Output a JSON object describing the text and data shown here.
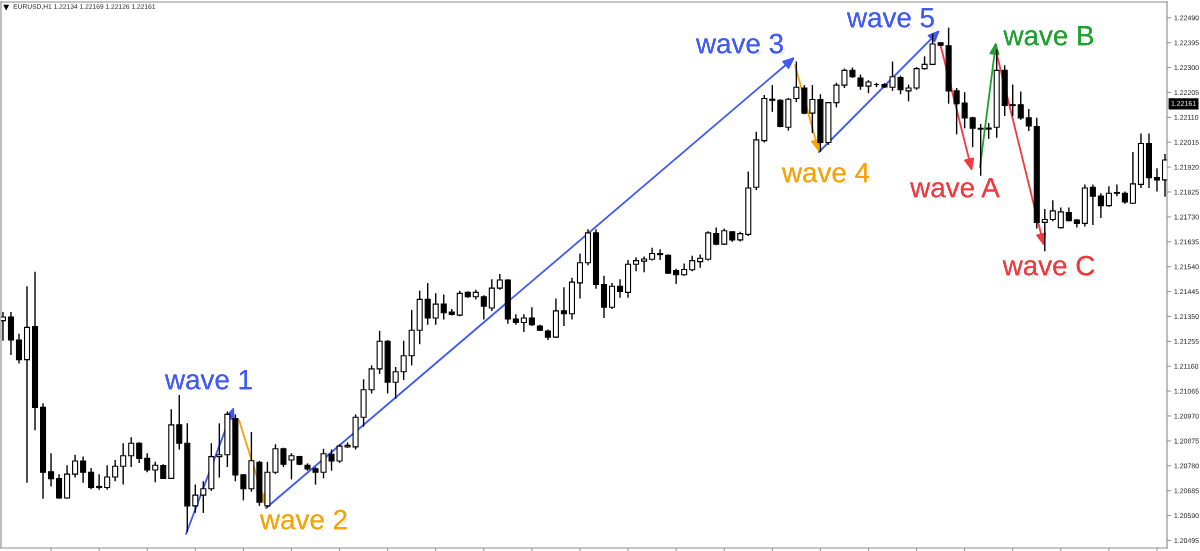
{
  "chart_data": {
    "type": "candlestick",
    "title": "EURUSD,H1 1.22134 1.22169 1.22126 1.22161",
    "tick_labels": "y",
    "categories": [
      null,
      null,
      null,
      null,
      null,
      null,
      null,
      null,
      null,
      null,
      null,
      null,
      null,
      null,
      null,
      null,
      null,
      null,
      null,
      null,
      null,
      null,
      null,
      null,
      null,
      null,
      null,
      null,
      null,
      null,
      null,
      null,
      null,
      null,
      null,
      null,
      null,
      null,
      null,
      null,
      null,
      null,
      null,
      null,
      null,
      null,
      null,
      null,
      null,
      null,
      null,
      null,
      null,
      null,
      null,
      null,
      null,
      null,
      null,
      null,
      null,
      null,
      null,
      null,
      null,
      null,
      null,
      null,
      null,
      null,
      null,
      null,
      null,
      null,
      null,
      null,
      null,
      null,
      null,
      null,
      null,
      null,
      null,
      null,
      null,
      null,
      null,
      null,
      null,
      null,
      null,
      null,
      null,
      null,
      null,
      null,
      null,
      null,
      null,
      null,
      null,
      null,
      null,
      null,
      null,
      null,
      null,
      null,
      null,
      null,
      null,
      null,
      null,
      null,
      null,
      null,
      null,
      null,
      null,
      null,
      null,
      null,
      null,
      null,
      null,
      null,
      null,
      null,
      null,
      null,
      null,
      null,
      null,
      null,
      null,
      null,
      null,
      null,
      null,
      null,
      null,
      null,
      null,
      null,
      null,
      null
    ],
    "ohlc": [
      [
        1.21334,
        1.21367,
        1.21257,
        1.21348
      ],
      [
        1.21348,
        1.21367,
        1.21203,
        1.2126
      ],
      [
        1.2126,
        1.21284,
        1.2117,
        1.21185
      ],
      [
        1.21185,
        1.21465,
        1.20715,
        1.21308
      ],
      [
        1.21311,
        1.21521,
        1.20916,
        1.21003
      ],
      [
        1.21003,
        1.21019,
        1.20654,
        1.20755
      ],
      [
        1.20757,
        1.20828,
        1.20701,
        1.20731
      ],
      [
        1.20731,
        1.20748,
        1.20654,
        1.20657
      ],
      [
        1.20657,
        1.20782,
        1.20654,
        1.20748
      ],
      [
        1.20748,
        1.20822,
        1.20735,
        1.20798
      ],
      [
        1.20798,
        1.20815,
        1.20715,
        1.20755
      ],
      [
        1.20755,
        1.20771,
        1.2069,
        1.20697
      ],
      [
        1.20701,
        1.20748,
        1.20688,
        1.20697
      ],
      [
        1.20697,
        1.20782,
        1.20688,
        1.20737
      ],
      [
        1.20737,
        1.20802,
        1.20721,
        1.20778
      ],
      [
        1.20778,
        1.20866,
        1.20708,
        1.20818
      ],
      [
        1.20818,
        1.20889,
        1.20775,
        1.20866
      ],
      [
        1.20866,
        1.2087,
        1.20791,
        1.20808
      ],
      [
        1.20808,
        1.20828,
        1.20755,
        1.20764
      ],
      [
        1.20764,
        1.20795,
        1.20717,
        1.20782
      ],
      [
        1.20781,
        1.20786,
        1.20732,
        1.20732
      ],
      [
        1.20732,
        1.20996,
        1.20729,
        1.20936
      ],
      [
        1.20936,
        1.2105,
        1.20842,
        1.20866
      ],
      [
        1.20866,
        1.20942,
        1.20527,
        1.20627
      ],
      [
        1.20627,
        1.20708,
        1.20601,
        1.20668
      ],
      [
        1.20668,
        1.20721,
        1.206,
        1.20692
      ],
      [
        1.20692,
        1.20866,
        1.20684,
        1.20815
      ],
      [
        1.20815,
        1.20942,
        1.20735,
        1.20822
      ],
      [
        1.20822,
        1.20987,
        1.20775,
        1.20976
      ],
      [
        1.2096,
        1.20976,
        1.20721,
        1.20745
      ],
      [
        1.20745,
        1.20748,
        1.20648,
        1.20692
      ],
      [
        1.20692,
        1.20909,
        1.20681,
        1.20799
      ],
      [
        1.20793,
        1.20799,
        1.20627,
        1.20641
      ],
      [
        1.20627,
        1.20795,
        1.2062,
        1.20755
      ],
      [
        1.20755,
        1.20862,
        1.20748,
        1.20845
      ],
      [
        1.20845,
        1.20849,
        1.20775,
        1.20786
      ],
      [
        1.20802,
        1.20828,
        1.20728,
        1.20818
      ],
      [
        1.20815,
        1.20818,
        1.20782,
        1.20786
      ],
      [
        1.20782,
        1.20789,
        1.20761,
        1.20768
      ],
      [
        1.20768,
        1.20775,
        1.20708,
        1.20755
      ],
      [
        1.20755,
        1.20845,
        1.20732,
        1.20826
      ],
      [
        1.20824,
        1.20842,
        1.20761,
        1.20798
      ],
      [
        1.20798,
        1.20862,
        1.20791,
        1.20855
      ],
      [
        1.20852,
        1.20869,
        1.20849,
        1.20858
      ],
      [
        1.20852,
        1.20976,
        1.20842,
        1.20965
      ],
      [
        1.20965,
        1.2111,
        1.20929,
        1.2107
      ],
      [
        1.2107,
        1.21163,
        1.21056,
        1.2115
      ],
      [
        1.2115,
        1.21295,
        1.2113,
        1.21255
      ],
      [
        1.21255,
        1.2126,
        1.21056,
        1.21099
      ],
      [
        1.21099,
        1.21157,
        1.21036,
        1.21139
      ],
      [
        1.21139,
        1.21257,
        1.21107,
        1.212
      ],
      [
        1.212,
        1.21375,
        1.21163,
        1.21297
      ],
      [
        1.21297,
        1.21448,
        1.21244,
        1.21415
      ],
      [
        1.21415,
        1.21478,
        1.21318,
        1.21344
      ],
      [
        1.21344,
        1.21438,
        1.21318,
        1.21397
      ],
      [
        1.21397,
        1.21434,
        1.21338,
        1.21364
      ],
      [
        1.21367,
        1.21378,
        1.21354,
        1.21358
      ],
      [
        1.21355,
        1.21448,
        1.21351,
        1.21438
      ],
      [
        1.21442,
        1.21445,
        1.21421,
        1.21425
      ],
      [
        1.21425,
        1.21452,
        1.21415,
        1.21442
      ],
      [
        1.21425,
        1.21431,
        1.21338,
        1.21389
      ],
      [
        1.21382,
        1.21492,
        1.21371,
        1.21458
      ],
      [
        1.21458,
        1.21512,
        1.21452,
        1.21489
      ],
      [
        1.21489,
        1.21492,
        1.21322,
        1.2134
      ],
      [
        1.2134,
        1.21358,
        1.21318,
        1.21327
      ],
      [
        1.21327,
        1.21358,
        1.21291,
        1.21344
      ],
      [
        1.21344,
        1.21385,
        1.21313,
        1.21318
      ],
      [
        1.21313,
        1.21318,
        1.21294,
        1.21297
      ],
      [
        1.21294,
        1.213,
        1.2126,
        1.21271
      ],
      [
        1.21271,
        1.21418,
        1.21268,
        1.21371
      ],
      [
        1.21371,
        1.21461,
        1.21313,
        1.2136
      ],
      [
        1.2136,
        1.21498,
        1.21338,
        1.21481
      ],
      [
        1.21478,
        1.2159,
        1.21418,
        1.21555
      ],
      [
        1.21555,
        1.21683,
        1.21545,
        1.21669
      ],
      [
        1.21669,
        1.21683,
        1.21456,
        1.21472
      ],
      [
        1.21472,
        1.21505,
        1.21344,
        1.21385
      ],
      [
        1.21385,
        1.21478,
        1.21378,
        1.21465
      ],
      [
        1.21465,
        1.21492,
        1.21421,
        1.21445
      ],
      [
        1.21442,
        1.21565,
        1.21421,
        1.21549
      ],
      [
        1.21549,
        1.21576,
        1.21522,
        1.21563
      ],
      [
        1.21561,
        1.21579,
        1.21519,
        1.21569
      ],
      [
        1.21568,
        1.21612,
        1.21563,
        1.2159
      ],
      [
        1.2159,
        1.21606,
        1.21565,
        1.21586
      ],
      [
        1.21583,
        1.21586,
        1.21512,
        1.21515
      ],
      [
        1.21525,
        1.21532,
        1.21474,
        1.21509
      ],
      [
        1.21509,
        1.21552,
        1.21505,
        1.21529
      ],
      [
        1.21528,
        1.21582,
        1.21522,
        1.21563
      ],
      [
        1.21559,
        1.21586,
        1.21536,
        1.21572
      ],
      [
        1.21568,
        1.21675,
        1.21563,
        1.21669
      ],
      [
        1.21666,
        1.21689,
        1.21622,
        1.21626
      ],
      [
        1.21626,
        1.21686,
        1.21623,
        1.21677
      ],
      [
        1.21673,
        1.21675,
        1.21635,
        1.21642
      ],
      [
        1.21642,
        1.21673,
        1.21636,
        1.21666
      ],
      [
        1.21663,
        1.21903,
        1.21657,
        1.2184
      ],
      [
        1.21843,
        1.22055,
        1.21833,
        1.22024
      ],
      [
        1.22021,
        1.22195,
        1.22014,
        1.22182
      ],
      [
        1.22179,
        1.22233,
        1.22131,
        1.22175
      ],
      [
        1.22175,
        1.22179,
        1.22072,
        1.22075
      ],
      [
        1.22072,
        1.22184,
        1.22059,
        1.22179
      ],
      [
        1.22182,
        1.22323,
        1.22168,
        1.22225
      ],
      [
        1.22222,
        1.22233,
        1.22122,
        1.22126
      ],
      [
        1.22126,
        1.22233,
        1.2205,
        1.22178
      ],
      [
        1.22178,
        1.22198,
        1.21978,
        1.22014
      ],
      [
        1.22014,
        1.22168,
        1.22005,
        1.22166
      ],
      [
        1.22166,
        1.22242,
        1.22148,
        1.22233
      ],
      [
        1.22233,
        1.22296,
        1.22222,
        1.22289
      ],
      [
        1.22289,
        1.223,
        1.2226,
        1.22265
      ],
      [
        1.2226,
        1.22273,
        1.22215,
        1.22229
      ],
      [
        1.22229,
        1.22252,
        1.22202,
        1.22245
      ],
      [
        1.22235,
        1.22242,
        1.22225,
        1.22235
      ],
      [
        1.22235,
        1.22241,
        1.22222,
        1.22226
      ],
      [
        1.22225,
        1.22323,
        1.22211,
        1.22265
      ],
      [
        1.22262,
        1.22269,
        1.22198,
        1.22215
      ],
      [
        1.22211,
        1.22235,
        1.22171,
        1.22222
      ],
      [
        1.22222,
        1.22302,
        1.22215,
        1.22296
      ],
      [
        1.22296,
        1.22343,
        1.22292,
        1.22312
      ],
      [
        1.22312,
        1.2243,
        1.22309,
        1.2239
      ],
      [
        1.22394,
        1.22396,
        1.22383,
        1.22385
      ],
      [
        1.22383,
        1.22452,
        1.22162,
        1.22211
      ],
      [
        1.22211,
        1.22222,
        1.22045,
        1.22162
      ],
      [
        1.22164,
        1.22206,
        1.22068,
        1.22108
      ],
      [
        1.22108,
        1.22112,
        1.21996,
        1.22068
      ],
      [
        1.22068,
        1.22085,
        1.21887,
        1.22065
      ],
      [
        1.22065,
        1.22088,
        1.22028,
        1.22069
      ],
      [
        1.22072,
        1.22369,
        1.22032,
        1.22289
      ],
      [
        1.22289,
        1.22309,
        1.22115,
        1.22155
      ],
      [
        1.22158,
        1.22235,
        1.22115,
        1.22155
      ],
      [
        1.22158,
        1.22209,
        1.22101,
        1.22108
      ],
      [
        1.22108,
        1.22142,
        1.22058,
        1.22077
      ],
      [
        1.22075,
        1.22108,
        1.21686,
        1.21709
      ],
      [
        1.21709,
        1.2176,
        1.21599,
        1.2172
      ],
      [
        1.2172,
        1.21793,
        1.21713,
        1.21753
      ],
      [
        1.21689,
        1.21766,
        1.21686,
        1.21749
      ],
      [
        1.21746,
        1.21766,
        1.21713,
        1.21715
      ],
      [
        1.21718,
        1.21722,
        1.21689,
        1.21705
      ],
      [
        1.21705,
        1.21854,
        1.21693,
        1.2184
      ],
      [
        1.21843,
        1.21854,
        1.21699,
        1.21809
      ],
      [
        1.21809,
        1.2182,
        1.21726,
        1.21773
      ],
      [
        1.21773,
        1.21847,
        1.21769,
        1.2182
      ],
      [
        1.21823,
        1.21854,
        1.21809,
        1.2182
      ],
      [
        1.2182,
        1.21827,
        1.2178,
        1.21787
      ],
      [
        1.21782,
        1.21978,
        1.2178,
        1.21856
      ],
      [
        1.21854,
        1.22048,
        1.2184,
        1.2201
      ],
      [
        1.2201,
        1.22048,
        1.2184,
        1.2188
      ],
      [
        1.2188,
        1.21916,
        1.21827,
        1.21871
      ],
      [
        1.21871,
        1.2197,
        1.21807,
        1.21947
      ]
    ],
    "ylim": [
      1.20466,
      1.2255
    ],
    "yticks": [
      1.20495,
      {
        "value": 1.2059,
        "label": "1.20590"
      },
      1.20685,
      {
        "value": 1.2078,
        "label": "1.20780"
      },
      1.20875,
      {
        "value": 1.2097,
        "label": "1.20970"
      },
      1.21065,
      {
        "value": 1.2116,
        "label": "1.21160"
      },
      1.21255,
      {
        "value": 1.2135,
        "label": "1.21350"
      },
      1.21445,
      {
        "value": 1.2154,
        "label": "1.21540"
      },
      1.21635,
      {
        "value": 1.2173,
        "label": "1.21730"
      },
      1.21825,
      {
        "value": 1.2192,
        "label": "1.21920"
      },
      1.22015,
      {
        "value": 1.2211,
        "label": "1.22110"
      },
      1.22205,
      {
        "value": 1.223,
        "label": "1.22300"
      },
      1.22395,
      {
        "value": 1.2249,
        "label": "1.22490"
      }
    ],
    "annotations": [
      "wave 1",
      "wave 2",
      "wave 3",
      "wave 4",
      "wave 5",
      "wave A",
      "wave B",
      "wave C",
      {
        "text": "1.22161",
        "y": 1.22161
      }
    ]
  }
}
